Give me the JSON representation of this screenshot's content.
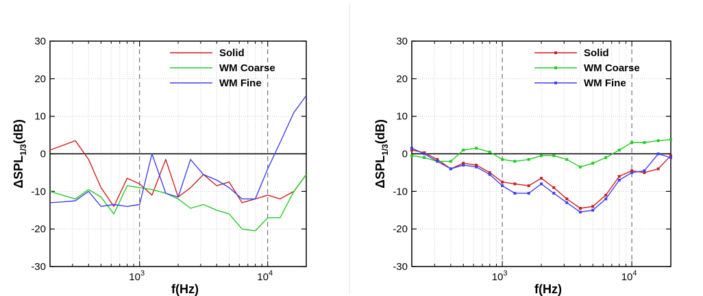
{
  "colors": {
    "solid": "#cc1f1f",
    "coarse": "#22cc22",
    "fine": "#3f3ff0"
  },
  "chart_data": [
    {
      "type": "line",
      "title": "",
      "xlabel": "f(Hz)",
      "ylabel": "ΔSPL1/3(dB)",
      "ylabel_main": "ΔSPL",
      "ylabel_sub": "1/3",
      "ylabel_unit": "(dB)",
      "x_scale": "log",
      "xlim": [
        200,
        20000
      ],
      "ylim": [
        -30,
        30
      ],
      "x_tick_labels": [
        {
          "base": "10",
          "exp": "3"
        },
        {
          "base": "10",
          "exp": "4"
        }
      ],
      "y_ticks": [
        -30,
        -20,
        -10,
        0,
        10,
        20,
        30
      ],
      "y_tick_labels": [
        "-30",
        "-20",
        "-10",
        "0",
        "10",
        "20",
        "30"
      ],
      "grid": true,
      "markers": false,
      "legend_position": "top-right",
      "x": [
        200,
        250,
        315,
        400,
        500,
        630,
        800,
        1000,
        1250,
        1600,
        2000,
        2500,
        3150,
        4000,
        5000,
        6300,
        8000,
        10000,
        12500,
        16000,
        20000
      ],
      "series": [
        {
          "name": "Solid",
          "color": "#cc1f1f",
          "values": [
            1.0,
            2.2,
            3.5,
            -1.5,
            -9.0,
            -14.0,
            -6.5,
            -8.0,
            -11.0,
            -1.5,
            -11.5,
            -9.0,
            -5.5,
            -8.5,
            -7.5,
            -13.0,
            -12.0,
            -11.0,
            -12.0,
            -10.0,
            -5.5
          ]
        },
        {
          "name": "WM Coarse",
          "color": "#22cc22",
          "values": [
            -10.0,
            -11.0,
            -12.0,
            -9.5,
            -11.5,
            -16.0,
            -8.5,
            -9.0,
            -9.5,
            -10.5,
            -12.0,
            -14.5,
            -13.5,
            -15.0,
            -16.0,
            -20.0,
            -20.5,
            -17.0,
            -17.0,
            -10.0,
            -5.5
          ]
        },
        {
          "name": "WM Fine",
          "color": "#3f3ff0",
          "values": [
            -13.0,
            -12.8,
            -12.5,
            -10.0,
            -14.0,
            -13.5,
            -14.0,
            -13.5,
            0.0,
            -10.5,
            -11.5,
            -1.5,
            -5.5,
            -7.0,
            -9.0,
            -12.0,
            -12.0,
            -4.0,
            3.0,
            11.0,
            15.5
          ]
        }
      ]
    },
    {
      "type": "line",
      "title": "",
      "xlabel": "f(Hz)",
      "ylabel": "ΔSPL1/3(dB)",
      "ylabel_main": "ΔSPL",
      "ylabel_sub": "1/3",
      "ylabel_unit": "(dB)",
      "x_scale": "log",
      "xlim": [
        200,
        20000
      ],
      "ylim": [
        -30,
        30
      ],
      "x_tick_labels": [
        {
          "base": "10",
          "exp": "3"
        },
        {
          "base": "10",
          "exp": "4"
        }
      ],
      "y_ticks": [
        -30,
        -20,
        -10,
        0,
        10,
        20,
        30
      ],
      "y_tick_labels": [
        "-30",
        "-20",
        "-10",
        "0",
        "10",
        "20",
        "30"
      ],
      "grid": true,
      "markers": true,
      "legend_position": "top-right",
      "x": [
        200,
        250,
        315,
        400,
        500,
        630,
        800,
        1000,
        1250,
        1600,
        2000,
        2500,
        3150,
        4000,
        5000,
        6300,
        8000,
        10000,
        12500,
        16000,
        20000
      ],
      "series": [
        {
          "name": "Solid",
          "color": "#cc1f1f",
          "values": [
            1.0,
            0.3,
            -1.5,
            -4.0,
            -2.5,
            -3.0,
            -5.0,
            -7.5,
            -8.0,
            -8.5,
            -6.5,
            -9.0,
            -12.0,
            -14.5,
            -14.0,
            -11.0,
            -6.0,
            -4.5,
            -5.0,
            -4.0,
            -0.5
          ]
        },
        {
          "name": "WM Coarse",
          "color": "#22cc22",
          "values": [
            -0.5,
            -1.0,
            -2.0,
            -2.0,
            1.0,
            1.5,
            0.5,
            -1.5,
            -2.0,
            -1.5,
            -0.5,
            -0.5,
            -1.5,
            -3.5,
            -2.5,
            -1.0,
            1.0,
            3.0,
            3.0,
            3.5,
            3.8
          ]
        },
        {
          "name": "WM Fine",
          "color": "#3f3ff0",
          "values": [
            1.5,
            0.0,
            -2.0,
            -4.0,
            -3.0,
            -3.5,
            -5.5,
            -8.5,
            -10.5,
            -10.5,
            -8.0,
            -10.5,
            -13.0,
            -15.5,
            -15.0,
            -12.0,
            -7.0,
            -5.0,
            -4.5,
            0.0,
            -1.0
          ]
        }
      ]
    }
  ]
}
